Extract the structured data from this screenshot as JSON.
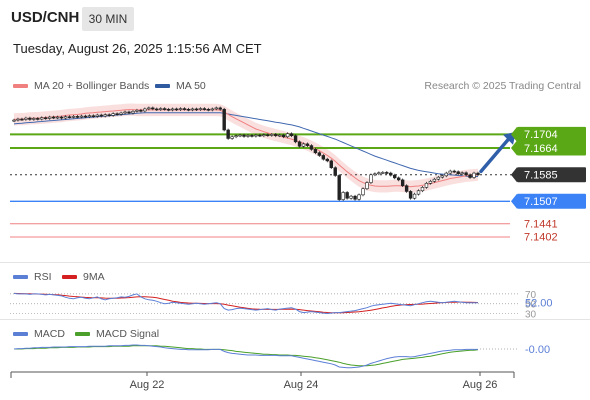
{
  "header": {
    "symbol": "USD/CNH",
    "timeframe": "30 MIN",
    "datetime": "Tuesday, August 26, 2025 1:15:56 AM CET"
  },
  "legend": {
    "ma20": "MA 20 + Bollinger Bands",
    "ma50": "MA 50",
    "rsi": "RSI",
    "rsi_ma": "9MA",
    "macd": "MACD",
    "macd_signal": "MACD Signal",
    "copyright": "Research © 2025 Trading Central"
  },
  "colors": {
    "ma20": "#f08080",
    "ma50": "#4169b0",
    "band": "#f9d9d9",
    "resistance": "#5aa816",
    "support": "#3b82f6",
    "support_red": "#f08080",
    "current": "#333333",
    "arrow": "#2f5fa8",
    "rsi": "#5c7fd6",
    "rsi_ma": "#d42020",
    "macd": "#5c7fd6",
    "macd_signal": "#4aa02a",
    "bull_candle": "#ffffff",
    "bear_candle": "#222222"
  },
  "chart_data": [
    {
      "type": "candlestick",
      "x_labels": [
        "Aug 22",
        "Aug 24",
        "Aug 26"
      ],
      "ylim": [
        7.134,
        7.182
      ],
      "levels": [
        {
          "value": "7.1704",
          "color": "#5aa816",
          "style": "resistance"
        },
        {
          "value": "7.1664",
          "color": "#5aa816",
          "style": "resistance"
        },
        {
          "value": "7.1585",
          "color": "#333333",
          "style": "current"
        },
        {
          "value": "7.1507",
          "color": "#3b82f6",
          "style": "support"
        },
        {
          "value": "7.1441",
          "color": "#f08080",
          "style": "support-weak"
        },
        {
          "value": "7.1402",
          "color": "#f08080",
          "style": "support-weak"
        }
      ],
      "closes": [
        7.1746,
        7.1749,
        7.1748,
        7.1752,
        7.1748,
        7.1751,
        7.1749,
        7.1753,
        7.1751,
        7.1755,
        7.1753,
        7.1755,
        7.1752,
        7.1756,
        7.1755,
        7.1757,
        7.1755,
        7.1758,
        7.1756,
        7.1759,
        7.1757,
        7.1761,
        7.1758,
        7.1762,
        7.176,
        7.1765,
        7.1763,
        7.1767,
        7.177,
        7.1767,
        7.1772,
        7.1775,
        7.1773,
        7.1779,
        7.1782,
        7.1779,
        7.1777,
        7.178,
        7.1778,
        7.1776,
        7.1779,
        7.1777,
        7.178,
        7.1778,
        7.1776,
        7.1779,
        7.1777,
        7.178,
        7.1778,
        7.1776,
        7.1779,
        7.1782,
        7.1778,
        7.1717,
        7.1692,
        7.1697,
        7.17,
        7.1702,
        7.1698,
        7.1701,
        7.1699,
        7.1702,
        7.17,
        7.1703,
        7.1701,
        7.1704,
        7.17,
        7.1702,
        7.1697,
        7.1706,
        7.17,
        7.1682,
        7.1669,
        7.1676,
        7.1671,
        7.166,
        7.165,
        7.1642,
        7.1631,
        7.1626,
        7.1606,
        7.1583,
        7.1512,
        7.1533,
        7.1516,
        7.1522,
        7.1513,
        7.1526,
        7.1544,
        7.1562,
        7.1585,
        7.1588,
        7.1591,
        7.1592,
        7.159,
        7.1584,
        7.1576,
        7.157,
        7.1553,
        7.1536,
        7.1516,
        7.1528,
        7.1538,
        7.1548,
        7.156,
        7.1566,
        7.1572,
        7.1578,
        7.1582,
        7.159,
        7.1596,
        7.1594,
        7.1588,
        7.1591,
        7.1585,
        7.1577,
        7.159,
        7.1585
      ],
      "ma20": [
        7.1748,
        7.1749,
        7.1749,
        7.175,
        7.1751,
        7.1752,
        7.1752,
        7.1753,
        7.1754,
        7.1755,
        7.1756,
        7.1757,
        7.1758,
        7.176,
        7.1761,
        7.1762,
        7.1763,
        7.1764,
        7.1766,
        7.1767,
        7.1768,
        7.1769,
        7.177,
        7.1771,
        7.1772,
        7.1773,
        7.1774,
        7.1775,
        7.1776,
        7.1777,
        7.1777,
        7.1776,
        7.1776,
        7.1776,
        7.1776,
        7.1776,
        7.1776,
        7.1776,
        7.1776,
        7.1776,
        7.1776,
        7.1776,
        7.1776,
        7.1776,
        7.1776,
        7.1776,
        7.1776,
        7.1776,
        7.1776,
        7.1776,
        7.1776,
        7.1776,
        7.1775,
        7.177,
        7.1763,
        7.1756,
        7.175,
        7.1744,
        7.1738,
        7.1732,
        7.1726,
        7.172,
        7.1716,
        7.1712,
        7.1708,
        7.1705,
        7.1702,
        7.1699,
        7.1696,
        7.1693,
        7.169,
        7.1686,
        7.1682,
        7.1678,
        7.1673,
        7.1668,
        7.1662,
        7.1656,
        7.1649,
        7.1642,
        7.1634,
        7.1625,
        7.1614,
        7.1604,
        7.1594,
        7.1585,
        7.1576,
        7.1568,
        7.1562,
        7.1557,
        7.1554,
        7.1552,
        7.1551,
        7.1551,
        7.1551,
        7.1552,
        7.1553,
        7.1553,
        7.1552,
        7.1551,
        7.155,
        7.1551,
        7.1552,
        7.1554,
        7.1556,
        7.1559,
        7.1562,
        7.1565,
        7.1568,
        7.1571,
        7.1574,
        7.1576,
        7.1578,
        7.158,
        7.1582,
        7.1583,
        7.1584,
        7.1585
      ],
      "ma50": [
        7.1735,
        7.1736,
        7.1737,
        7.1738,
        7.1739,
        7.174,
        7.1741,
        7.1742,
        7.1743,
        7.1744,
        7.1745,
        7.1746,
        7.1747,
        7.1748,
        7.1749,
        7.175,
        7.1751,
        7.1752,
        7.1753,
        7.1754,
        7.1755,
        7.1756,
        7.1757,
        7.1758,
        7.1759,
        7.176,
        7.1761,
        7.1762,
        7.1763,
        7.1764,
        7.1765,
        7.1766,
        7.1767,
        7.1768,
        7.1768,
        7.1768,
        7.1768,
        7.1768,
        7.1768,
        7.1768,
        7.1768,
        7.1768,
        7.1768,
        7.1768,
        7.1768,
        7.1768,
        7.1768,
        7.1768,
        7.1768,
        7.1768,
        7.1768,
        7.1768,
        7.1768,
        7.1766,
        7.1764,
        7.1762,
        7.176,
        7.1758,
        7.1756,
        7.1754,
        7.1752,
        7.175,
        7.1748,
        7.1746,
        7.1744,
        7.1742,
        7.174,
        7.1738,
        7.1736,
        7.1734,
        7.1732,
        7.1729,
        7.1726,
        7.1722,
        7.1718,
        7.1714,
        7.171,
        7.1706,
        7.1702,
        7.1698,
        7.1694,
        7.169,
        7.1685,
        7.168,
        7.1675,
        7.167,
        7.1665,
        7.166,
        7.1655,
        7.165,
        7.1645,
        7.164,
        7.1636,
        7.1632,
        7.1628,
        7.1624,
        7.162,
        7.1616,
        7.1612,
        7.1608,
        7.1604,
        7.1601,
        7.1598,
        7.1596,
        7.1594,
        7.1592,
        7.159,
        7.1588,
        7.1587,
        7.1586,
        7.1585,
        7.1584,
        7.1583,
        7.1582,
        7.1581,
        7.158,
        7.158,
        7.158
      ],
      "bb_width": 0.0018
    },
    {
      "type": "line",
      "title": "RSI",
      "ylim": [
        25,
        80
      ],
      "levels": [
        70,
        50,
        30
      ],
      "value_label": "52.00",
      "series": [
        {
          "name": "RSI",
          "values": [
            71,
            70,
            70,
            70,
            69,
            70,
            70,
            69,
            68,
            69,
            68,
            67,
            66,
            63,
            61,
            60,
            62,
            63,
            61,
            60,
            62,
            64,
            60,
            58,
            60,
            61,
            62,
            64,
            63,
            65,
            68,
            70,
            64,
            60,
            58,
            57,
            55,
            52,
            50,
            51,
            53,
            52,
            51,
            50,
            49,
            50,
            51,
            50,
            49,
            50,
            51,
            52,
            50,
            40,
            37,
            38,
            40,
            41,
            40,
            39,
            38,
            37,
            38,
            39,
            40,
            38,
            37,
            39,
            40,
            41,
            42,
            39,
            34,
            32,
            33,
            34,
            33,
            32,
            31,
            30,
            31,
            32,
            32,
            33,
            34,
            35,
            36,
            38,
            40,
            42,
            45,
            47,
            48,
            49,
            50,
            51,
            50,
            49,
            48,
            47,
            46,
            48,
            50,
            52,
            54,
            55,
            54,
            53,
            52,
            53,
            54,
            55,
            54,
            53,
            52,
            52,
            52,
            52
          ]
        },
        {
          "name": "9MA",
          "values": [
            71,
            70.8,
            70.6,
            70.4,
            70.2,
            70,
            69.8,
            69.6,
            69.3,
            69,
            68.6,
            68.1,
            67.3,
            66.5,
            65.6,
            64.8,
            64.1,
            63.5,
            62.9,
            62.4,
            62.1,
            62,
            61.8,
            61.4,
            61.2,
            61.2,
            61.3,
            61.6,
            61.9,
            62.4,
            63.2,
            64,
            64.3,
            64.2,
            63.8,
            63,
            62,
            60.5,
            58.7,
            56.9,
            55.2,
            53.9,
            52.8,
            52,
            51.4,
            51,
            50.8,
            50.6,
            50.4,
            50.3,
            50.2,
            50.3,
            50.1,
            49,
            47.3,
            45.8,
            44.3,
            43,
            41.8,
            40.5,
            39.5,
            39,
            38.6,
            38.5,
            38.6,
            38.5,
            38.4,
            38.5,
            38.7,
            38.9,
            39,
            38.8,
            38,
            37,
            36,
            35.1,
            34.3,
            33.5,
            32.8,
            32.2,
            31.8,
            31.7,
            31.7,
            31.8,
            32.2,
            32.6,
            33.1,
            33.8,
            34.6,
            35.6,
            36.8,
            38.3,
            39.9,
            41.4,
            43,
            44.6,
            45.9,
            46.9,
            47.7,
            48.2,
            48.4,
            48.6,
            48.9,
            49.3,
            49.8,
            50.4,
            51,
            51.6,
            52.2,
            52.6,
            53,
            53.2,
            53.3,
            53.3,
            53.2,
            53,
            52.8,
            52.6
          ]
        }
      ]
    },
    {
      "type": "line",
      "title": "MACD",
      "ylim": [
        -0.0055,
        0.0015
      ],
      "value_label": "-0.00",
      "series": [
        {
          "name": "MACD",
          "values": [
            0.0,
            0.0001,
            0.0001,
            0.0002,
            0.0002,
            0.0003,
            0.0003,
            0.0004,
            0.0004,
            0.0004,
            0.0005,
            0.0005,
            0.0005,
            0.0005,
            0.0006,
            0.0006,
            0.0006,
            0.0006,
            0.0006,
            0.0007,
            0.0007,
            0.0007,
            0.0007,
            0.0007,
            0.0008,
            0.0008,
            0.0008,
            0.0008,
            0.0009,
            0.0009,
            0.001,
            0.001,
            0.0009,
            0.0009,
            0.0008,
            0.0007,
            0.0006,
            0.0005,
            0.0003,
            0.0002,
            0.0001,
            0.0,
            -0.0001,
            -0.0001,
            -0.0002,
            -0.0002,
            -0.0002,
            -0.0002,
            -0.0002,
            -0.0002,
            -0.0001,
            -0.0001,
            -0.0001,
            -0.0006,
            -0.0009,
            -0.0011,
            -0.0012,
            -0.0013,
            -0.0014,
            -0.0015,
            -0.0015,
            -0.0015,
            -0.0016,
            -0.0016,
            -0.0016,
            -0.0016,
            -0.0016,
            -0.0017,
            -0.0017,
            -0.0017,
            -0.0017,
            -0.0019,
            -0.0021,
            -0.0023,
            -0.0025,
            -0.0027,
            -0.0029,
            -0.0031,
            -0.0033,
            -0.0035,
            -0.0037,
            -0.004,
            -0.0045,
            -0.0046,
            -0.0047,
            -0.0047,
            -0.0046,
            -0.0045,
            -0.0043,
            -0.004,
            -0.0036,
            -0.0033,
            -0.003,
            -0.0027,
            -0.0024,
            -0.0022,
            -0.002,
            -0.0019,
            -0.0019,
            -0.0019,
            -0.002,
            -0.0019,
            -0.0017,
            -0.0015,
            -0.0013,
            -0.0011,
            -0.0009,
            -0.0007,
            -0.0005,
            -0.0004,
            -0.0003,
            -0.0002,
            -0.0002,
            -0.0002,
            -0.0001,
            -0.0001,
            -0.0001,
            -0.0001
          ]
        },
        {
          "name": "MACD Signal",
          "values": [
            0.0,
            0.0,
            0.0,
            0.0001,
            0.0001,
            0.0001,
            0.0002,
            0.0002,
            0.0002,
            0.0003,
            0.0003,
            0.0003,
            0.0004,
            0.0004,
            0.0004,
            0.0004,
            0.0005,
            0.0005,
            0.0005,
            0.0005,
            0.0006,
            0.0006,
            0.0006,
            0.0006,
            0.0006,
            0.0007,
            0.0007,
            0.0007,
            0.0007,
            0.0007,
            0.0008,
            0.0008,
            0.0008,
            0.0008,
            0.0008,
            0.0008,
            0.0008,
            0.0007,
            0.0007,
            0.0006,
            0.0005,
            0.0004,
            0.0003,
            0.0002,
            0.0001,
            0.0001,
            0.0,
            0.0,
            -0.0001,
            -0.0001,
            -0.0001,
            -0.0001,
            -0.0001,
            -0.0002,
            -0.0003,
            -0.0004,
            -0.0006,
            -0.0007,
            -0.0008,
            -0.0009,
            -0.001,
            -0.0011,
            -0.0012,
            -0.0013,
            -0.0013,
            -0.0014,
            -0.0014,
            -0.0015,
            -0.0015,
            -0.0015,
            -0.0016,
            -0.0016,
            -0.0017,
            -0.0018,
            -0.0019,
            -0.002,
            -0.0022,
            -0.0023,
            -0.0025,
            -0.0027,
            -0.0029,
            -0.0031,
            -0.0033,
            -0.0036,
            -0.0038,
            -0.004,
            -0.0041,
            -0.0042,
            -0.0042,
            -0.0042,
            -0.0041,
            -0.004,
            -0.0038,
            -0.0036,
            -0.0034,
            -0.0032,
            -0.003,
            -0.0028,
            -0.0026,
            -0.0025,
            -0.0024,
            -0.0023,
            -0.0022,
            -0.0021,
            -0.0019,
            -0.0018,
            -0.0016,
            -0.0014,
            -0.0012,
            -0.001,
            -0.0008,
            -0.0007,
            -0.0006,
            -0.0005,
            -0.0004,
            -0.0003,
            -0.0003,
            -0.0002
          ]
        }
      ]
    }
  ]
}
